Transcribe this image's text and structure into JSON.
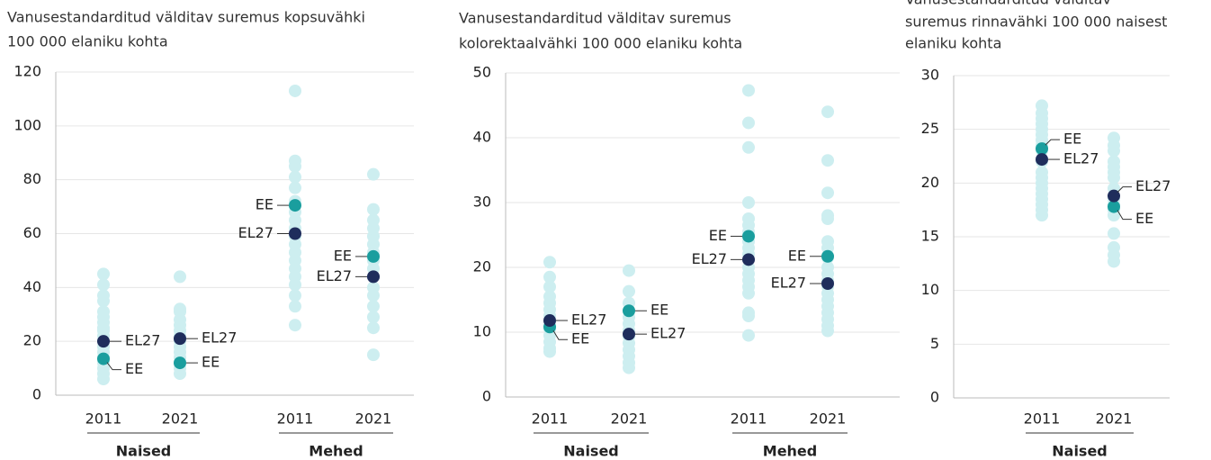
{
  "chart_data": [
    {
      "type": "strip",
      "title": [
        "Vanusestandarditud välditav suremus kopsuvähki",
        "100 000 elaniku kohta"
      ],
      "categories": [
        "2011",
        "2021",
        "2011",
        "2021"
      ],
      "groups": [
        "Naised",
        "Mehed"
      ],
      "ylim": [
        0,
        120
      ],
      "yticks": [
        0,
        20,
        40,
        60,
        80,
        100,
        120
      ],
      "grid": true,
      "series": [
        {
          "color": "#cdeef0",
          "values": [
            [
              6,
              8,
              10,
              12,
              14,
              16,
              18,
              20,
              22,
              24,
              25,
              27,
              29,
              31,
              35,
              37,
              41,
              45
            ],
            [
              8,
              10,
              12,
              14,
              16,
              18,
              20,
              22,
              24,
              26,
              28,
              31,
              32,
              44
            ],
            [
              26,
              33,
              37,
              41,
              44,
              47,
              50,
              53,
              56,
              59,
              62,
              65,
              68,
              72,
              77,
              81,
              85,
              87,
              113
            ],
            [
              15,
              25,
              29,
              33,
              37,
              40,
              44,
              47,
              50,
              53,
              56,
              59,
              62,
              65,
              69,
              82
            ]
          ]
        },
        {
          "name": "EE",
          "color": "#1a9e9e",
          "values": [
            13.5,
            12,
            70.5,
            51.5
          ]
        },
        {
          "name": "EL27",
          "color": "#1f2d5c",
          "values": [
            20,
            21,
            60,
            44
          ]
        }
      ]
    },
    {
      "type": "strip",
      "title": [
        "Vanusestandarditud välditav suremus",
        "kolorektaalvähki 100 000 elaniku kohta"
      ],
      "categories": [
        "2011",
        "2021",
        "2011",
        "2021"
      ],
      "groups": [
        "Naised",
        "Mehed"
      ],
      "ylim": [
        0,
        50
      ],
      "yticks": [
        0,
        10,
        20,
        30,
        40,
        50
      ],
      "grid": true,
      "series": [
        {
          "color": "#cdeef0",
          "values": [
            [
              7,
              7.5,
              8.5,
              9.5,
              10.5,
              11.5,
              12.5,
              13.5,
              14.5,
              15.5,
              17,
              18.5,
              20.8
            ],
            [
              4.5,
              5.3,
              6.3,
              7.3,
              8.3,
              9.3,
              10.3,
              11.3,
              12.3,
              13.3,
              14.5,
              16.3,
              19.5
            ],
            [
              9.5,
              12.5,
              13,
              16,
              17,
              18,
              19,
              20,
              22,
              23,
              24,
              25.5,
              26.5,
              27.5,
              30,
              38.5,
              42.3,
              47.3
            ],
            [
              10.2,
              11,
              12,
              13,
              14,
              15,
              16,
              17,
              18,
              19,
              20,
              21.5,
              23,
              24,
              27.5,
              28,
              31.5,
              36.5,
              44
            ]
          ]
        },
        {
          "name": "EE",
          "color": "#1a9e9e",
          "values": [
            10.8,
            13.3,
            24.8,
            21.7
          ]
        },
        {
          "name": "EL27",
          "color": "#1f2d5c",
          "values": [
            11.8,
            9.7,
            21.2,
            17.5
          ]
        }
      ]
    },
    {
      "type": "strip",
      "title": [
        "Vanusestandarditud välditav",
        "suremus rinnavähki 100 000 naisest",
        "elaniku kohta"
      ],
      "categories": [
        "2011",
        "2021"
      ],
      "groups": [
        "Naised"
      ],
      "ylim": [
        0,
        30
      ],
      "yticks": [
        0,
        5,
        10,
        15,
        20,
        25,
        30
      ],
      "grid": true,
      "series": [
        {
          "color": "#cdeef0",
          "values": [
            [
              17,
              17.5,
              18,
              18.5,
              19,
              19.5,
              20,
              20.5,
              21,
              22,
              23,
              23.5,
              24,
              24.5,
              25,
              25.5,
              26,
              26.5,
              27.2
            ],
            [
              12.7,
              13.3,
              14,
              15.3,
              17,
              17.5,
              18,
              18.5,
              19.5,
              20.5,
              21,
              21.5,
              22,
              23,
              23.5,
              24.2
            ]
          ]
        },
        {
          "name": "EE",
          "color": "#1a9e9e",
          "values": [
            23.2,
            17.8
          ]
        },
        {
          "name": "EL27",
          "color": "#1f2d5c",
          "values": [
            22.2,
            18.8
          ]
        }
      ]
    }
  ]
}
